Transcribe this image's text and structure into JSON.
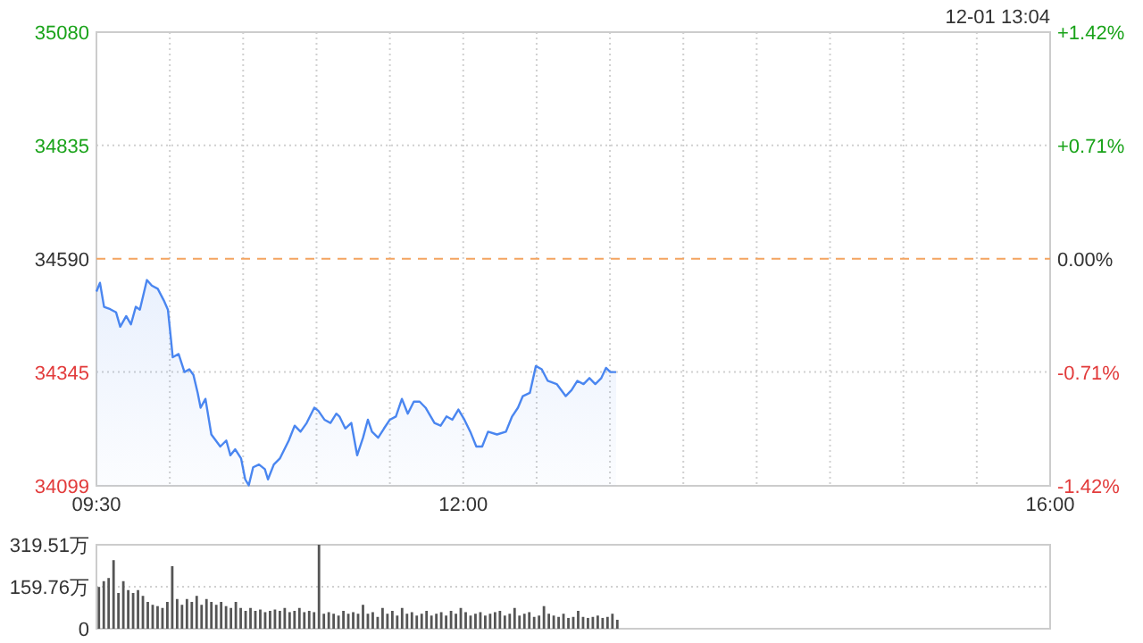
{
  "chart_data": [
    {
      "type": "area",
      "subtitle": "12-01 13:04",
      "grid": true,
      "x": [
        9.5,
        9.524,
        9.552,
        9.594,
        9.634,
        9.662,
        9.703,
        9.735,
        9.768,
        9.796,
        9.844,
        9.877,
        9.918,
        9.959,
        9.987,
        10.008,
        10.02,
        10.06,
        10.1,
        10.133,
        10.161,
        10.19,
        10.21,
        10.243,
        10.283,
        10.344,
        10.385,
        10.413,
        10.446,
        10.486,
        10.514,
        10.538,
        10.568,
        10.608,
        10.648,
        10.669,
        10.709,
        10.75,
        10.811,
        10.851,
        10.891,
        10.933,
        10.985,
        11.013,
        11.054,
        11.095,
        11.135,
        11.156,
        11.196,
        11.237,
        11.277,
        11.317,
        11.35,
        11.378,
        11.42,
        11.46,
        11.5,
        11.541,
        11.582,
        11.622,
        11.663,
        11.703,
        11.743,
        11.804,
        11.846,
        11.886,
        11.926,
        11.967,
        12.008,
        12.048,
        12.089,
        12.129,
        12.169,
        12.23,
        12.291,
        12.333,
        12.373,
        12.406,
        12.454,
        12.495,
        12.535,
        12.576,
        12.637,
        12.698,
        12.738,
        12.778,
        12.82,
        12.86,
        12.9,
        12.941,
        12.973,
        13.002,
        13.042
      ],
      "series": [
        {
          "color": "#4a86f0",
          "values": [
            34519,
            34538,
            34486,
            34481,
            34474,
            34443,
            34466,
            34448,
            34486,
            34480,
            34544,
            34532,
            34525,
            34500,
            34480,
            34416,
            34377,
            34384,
            34345,
            34351,
            34339,
            34300,
            34268,
            34287,
            34210,
            34184,
            34197,
            34165,
            34178,
            34158,
            34113,
            34100,
            34139,
            34145,
            34135,
            34113,
            34145,
            34158,
            34197,
            34229,
            34216,
            34235,
            34268,
            34261,
            34242,
            34235,
            34255,
            34249,
            34223,
            34235,
            34165,
            34203,
            34242,
            34216,
            34203,
            34223,
            34242,
            34249,
            34287,
            34255,
            34281,
            34281,
            34268,
            34235,
            34229,
            34249,
            34242,
            34264,
            34242,
            34216,
            34184,
            34184,
            34216,
            34210,
            34216,
            34249,
            34268,
            34293,
            34300,
            34358,
            34351,
            34326,
            34319,
            34293,
            34306,
            34326,
            34319,
            34332,
            34319,
            34332,
            34354,
            34345,
            34345
          ]
        }
      ],
      "xlim": [
        9.5,
        16
      ],
      "xticks": [
        {
          "value": 9.5,
          "label": "09:30"
        },
        {
          "value": 10,
          "label": null
        },
        {
          "value": 10.5,
          "label": null
        },
        {
          "value": 11,
          "label": null
        },
        {
          "value": 11.5,
          "label": null
        },
        {
          "value": 12,
          "label": "12:00"
        },
        {
          "value": 12.5,
          "label": null
        },
        {
          "value": 13,
          "label": null
        },
        {
          "value": 13.5,
          "label": null
        },
        {
          "value": 14,
          "label": null
        },
        {
          "value": 14.5,
          "label": null
        },
        {
          "value": 15,
          "label": null
        },
        {
          "value": 15.5,
          "label": null
        },
        {
          "value": 16,
          "label": "16:00"
        }
      ],
      "ylim": [
        34099,
        35080
      ],
      "yticks": [
        34099,
        34345,
        34590,
        34835,
        35080
      ],
      "y2lim": [
        -1.42,
        1.42
      ],
      "y2ticks": [
        {
          "value": -1.42,
          "label": "-1.42%"
        },
        {
          "value": -0.71,
          "label": "-0.71%"
        },
        {
          "value": 0,
          "label": "0.00%"
        },
        {
          "value": 0.71,
          "label": "+0.71%"
        },
        {
          "value": 1.42,
          "label": "+1.42%"
        }
      ],
      "ref_lines": [
        {
          "axis": "y",
          "value": 34590,
          "color": "#f4a460",
          "line_style": "dashed"
        }
      ]
    },
    {
      "type": "bar",
      "grid": "y",
      "tick_labels": "y",
      "color": "#555555",
      "x": [
        9.5167,
        9.55,
        9.5833,
        9.6167,
        9.65,
        9.6833,
        9.7167,
        9.75,
        9.7833,
        9.8167,
        9.85,
        9.8833,
        9.9167,
        9.95,
        9.9833,
        10.0167,
        10.05,
        10.0833,
        10.1167,
        10.15,
        10.1833,
        10.2167,
        10.25,
        10.2833,
        10.3167,
        10.35,
        10.3833,
        10.4167,
        10.45,
        10.4833,
        10.5167,
        10.55,
        10.5833,
        10.6167,
        10.65,
        10.6833,
        10.7167,
        10.75,
        10.7833,
        10.8167,
        10.85,
        10.8833,
        10.9167,
        10.95,
        10.9833,
        11.0167,
        11.05,
        11.0833,
        11.1167,
        11.15,
        11.1833,
        11.2167,
        11.25,
        11.2833,
        11.3167,
        11.35,
        11.3833,
        11.4167,
        11.45,
        11.4833,
        11.5167,
        11.55,
        11.5833,
        11.6167,
        11.65,
        11.6833,
        11.7167,
        11.75,
        11.7833,
        11.8167,
        11.85,
        11.8833,
        11.9167,
        11.95,
        11.9833,
        12.0167,
        12.05,
        12.0833,
        12.1167,
        12.15,
        12.1833,
        12.2167,
        12.25,
        12.2833,
        12.3167,
        12.35,
        12.3833,
        12.4167,
        12.45,
        12.4833,
        12.5167,
        12.55,
        12.5833,
        12.6167,
        12.65,
        12.6833,
        12.7167,
        12.75,
        12.7833,
        12.8167,
        12.85,
        12.8833,
        12.9167,
        12.95,
        12.9833,
        13.0167,
        13.05
      ],
      "values": [
        159,
        181,
        193,
        261,
        136,
        181,
        147,
        136,
        147,
        125,
        102,
        91,
        86,
        79,
        102,
        238,
        113,
        91,
        113,
        102,
        125,
        91,
        113,
        102,
        91,
        102,
        86,
        79,
        102,
        79,
        68,
        79,
        68,
        73,
        63,
        68,
        73,
        68,
        79,
        63,
        68,
        79,
        63,
        68,
        63,
        319.51,
        57,
        63,
        57,
        50,
        68,
        57,
        63,
        57,
        91,
        57,
        63,
        45,
        79,
        57,
        68,
        50,
        79,
        57,
        63,
        50,
        57,
        68,
        50,
        57,
        63,
        50,
        68,
        57,
        79,
        63,
        50,
        57,
        63,
        50,
        57,
        63,
        68,
        50,
        57,
        79,
        50,
        57,
        63,
        45,
        50,
        86,
        57,
        50,
        45,
        57,
        41,
        45,
        68,
        45,
        41,
        45,
        50,
        41,
        45,
        57,
        34
      ],
      "xlim": [
        9.5,
        16
      ],
      "ylim": [
        0,
        319.51
      ],
      "yticks": [
        0,
        {
          "value": 159.76,
          "label": "159.76万"
        },
        {
          "value": 319.51,
          "label": "319.51万"
        }
      ]
    }
  ]
}
